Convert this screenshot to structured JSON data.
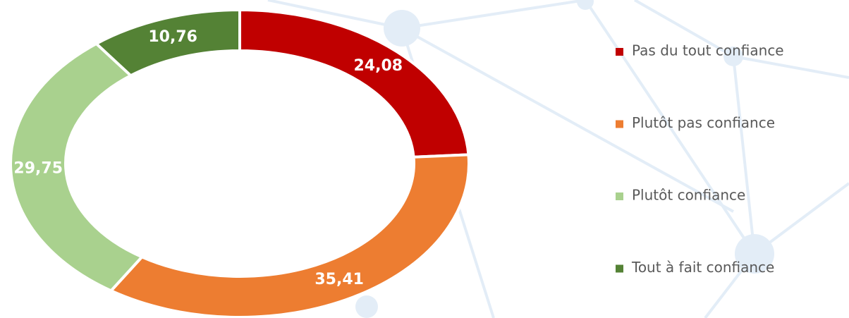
{
  "chart_data": {
    "type": "donut",
    "categories": [
      "Pas du tout confiance",
      "Plutôt pas confiance",
      "Plutôt confiance",
      "Tout à fait confiance"
    ],
    "values": [
      24.08,
      35.41,
      29.75,
      10.76
    ],
    "value_labels": [
      "24,08",
      "35,41",
      "29,75",
      "10,76"
    ],
    "colors": [
      "#c00000",
      "#ed7d31",
      "#a9d18e",
      "#548235"
    ],
    "legend": "right"
  }
}
